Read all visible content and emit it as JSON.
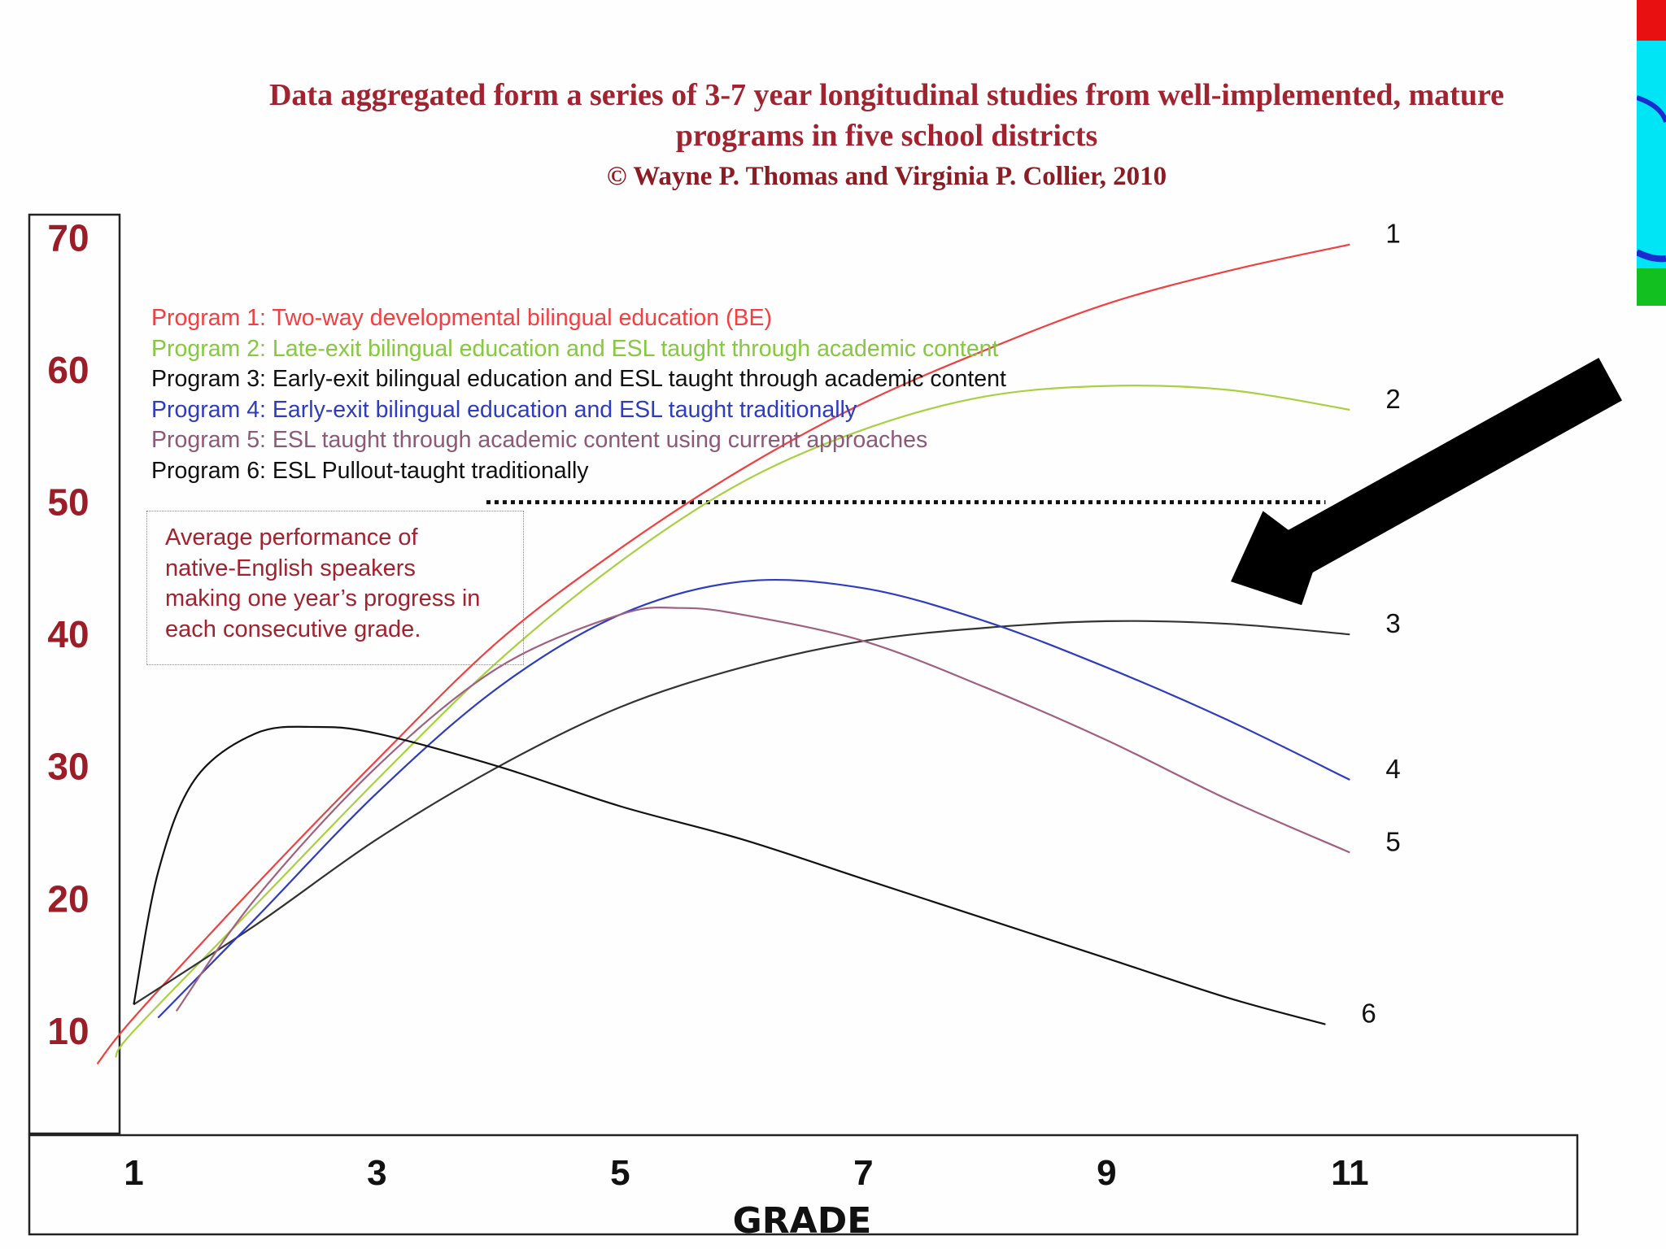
{
  "header": {
    "title_line1": "Data aggregated form a series of 3-7 year longitudinal studies from well-implemented, mature",
    "title_line2": "programs in five school districts",
    "copyright": "© Wayne P. Thomas and Virginia P. Collier, 2010"
  },
  "legend": {
    "items": [
      {
        "text": "Program 1: Two-way developmental bilingual education (BE)",
        "color": "#f04040"
      },
      {
        "text": "Program 2: Late-exit bilingual education and ESL taught through academic content",
        "color": "#86c840"
      },
      {
        "text": "Program 3: Early-exit bilingual education and ESL taught through academic content",
        "color": "#111111"
      },
      {
        "text": "Program 4: Early-exit bilingual education and ESL taught traditionally",
        "color": "#2e3cc0"
      },
      {
        "text": "Program 5: ESL taught through academic content using current approaches",
        "color": "#8c5a78"
      },
      {
        "text": "Program 6: ESL Pullout-taught traditionally",
        "color": "#111111"
      }
    ]
  },
  "annotation": {
    "lines": [
      "Average performance of",
      "native-English speakers",
      "making one year’s progress in",
      "each consecutive grade."
    ]
  },
  "chart_data": {
    "type": "line",
    "xlabel": "GRADE",
    "ylabel": "",
    "x_ticks": [
      1,
      3,
      5,
      7,
      9,
      11
    ],
    "y_ticks": [
      10,
      20,
      30,
      40,
      50,
      60,
      70
    ],
    "xlim": [
      -0.1,
      13.6
    ],
    "ylim": [
      -6.5,
      88
    ],
    "reference_line": {
      "y": 50,
      "x_start": 3.9,
      "x_end": 10.8,
      "style": "dotted"
    },
    "series": [
      {
        "label": "1",
        "color": "#f04040",
        "points": [
          [
            0.7,
            7.5
          ],
          [
            1,
            11
          ],
          [
            2,
            21
          ],
          [
            3,
            30.5
          ],
          [
            4,
            39.5
          ],
          [
            5,
            46.5
          ],
          [
            6,
            52.5
          ],
          [
            7,
            57.5
          ],
          [
            8,
            61.5
          ],
          [
            9,
            65
          ],
          [
            10,
            67.5
          ],
          [
            11,
            69.5
          ]
        ]
      },
      {
        "label": "2",
        "color": "#a8d040",
        "points": [
          [
            0.85,
            8
          ],
          [
            1,
            10
          ],
          [
            2,
            19.5
          ],
          [
            3,
            29
          ],
          [
            4,
            38
          ],
          [
            5,
            45.5
          ],
          [
            6,
            51.5
          ],
          [
            7,
            55.5
          ],
          [
            8,
            58
          ],
          [
            9,
            58.8
          ],
          [
            10,
            58.5
          ],
          [
            11,
            57
          ]
        ]
      },
      {
        "label": "3",
        "color": "#333333",
        "points": [
          [
            1,
            12
          ],
          [
            2,
            18
          ],
          [
            3,
            24.5
          ],
          [
            4,
            30
          ],
          [
            5,
            34.5
          ],
          [
            6,
            37.5
          ],
          [
            7,
            39.5
          ],
          [
            8,
            40.5
          ],
          [
            9,
            41
          ],
          [
            10,
            40.8
          ],
          [
            11,
            40
          ]
        ]
      },
      {
        "label": "4",
        "color": "#2e3cc0",
        "points": [
          [
            1.2,
            11
          ],
          [
            2,
            18.5
          ],
          [
            3,
            28
          ],
          [
            4,
            36
          ],
          [
            5,
            41.5
          ],
          [
            6,
            44
          ],
          [
            7,
            43.5
          ],
          [
            8,
            41
          ],
          [
            9,
            37.5
          ],
          [
            10,
            33.5
          ],
          [
            11,
            29
          ]
        ]
      },
      {
        "label": "5",
        "color": "#a06080",
        "points": [
          [
            1.35,
            11.5
          ],
          [
            2,
            20
          ],
          [
            3,
            30
          ],
          [
            4,
            37.5
          ],
          [
            5,
            41.5
          ],
          [
            5.5,
            42
          ],
          [
            6,
            41.5
          ],
          [
            7,
            39.5
          ],
          [
            8,
            36
          ],
          [
            9,
            32
          ],
          [
            10,
            27.5
          ],
          [
            11,
            23.5
          ]
        ]
      },
      {
        "label": "6",
        "color": "#111111",
        "points": [
          [
            1,
            12
          ],
          [
            1.2,
            22
          ],
          [
            1.5,
            29
          ],
          [
            2,
            32.5
          ],
          [
            2.5,
            33
          ],
          [
            3,
            32.5
          ],
          [
            4,
            30
          ],
          [
            5,
            27
          ],
          [
            6,
            24.5
          ],
          [
            7,
            21.5
          ],
          [
            8,
            18.5
          ],
          [
            9,
            15.5
          ],
          [
            10,
            12.5
          ],
          [
            10.8,
            10.5
          ]
        ]
      }
    ]
  },
  "colors": {
    "title": "#a0232f",
    "axis_numbers": "#9c1c28",
    "arrow": "#000000"
  }
}
